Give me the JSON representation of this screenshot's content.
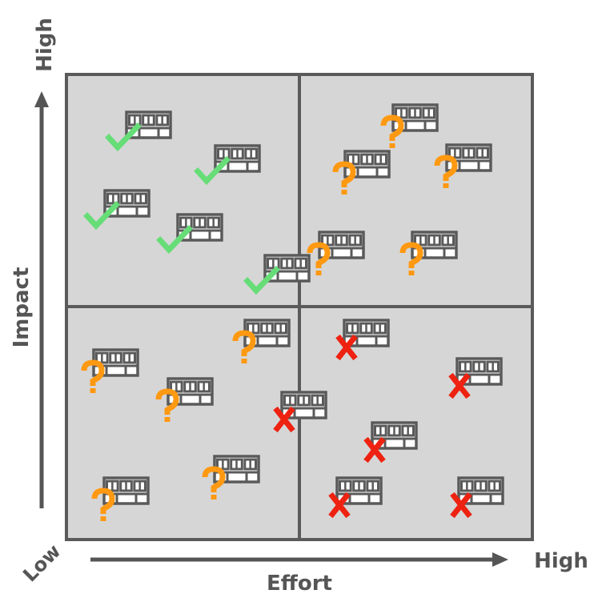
{
  "axes": {
    "x_label": "Effort",
    "y_label": "Impact",
    "y_high_label": "High",
    "x_high_label": "High",
    "origin_label": "Low"
  },
  "colors": {
    "quadrant_fill": "#d6d6d6",
    "quadrant_border": "#5a5a5a",
    "axis": "#555555",
    "keyboard_outline": "#5a5a5a",
    "keyboard_fill": "#ffffff",
    "check": "#66dd77",
    "question": "#ff9911",
    "cross": "#ee2211"
  },
  "marker_legend": {
    "check": "check-icon",
    "question": "question-icon",
    "cross": "cross-icon"
  }
}
